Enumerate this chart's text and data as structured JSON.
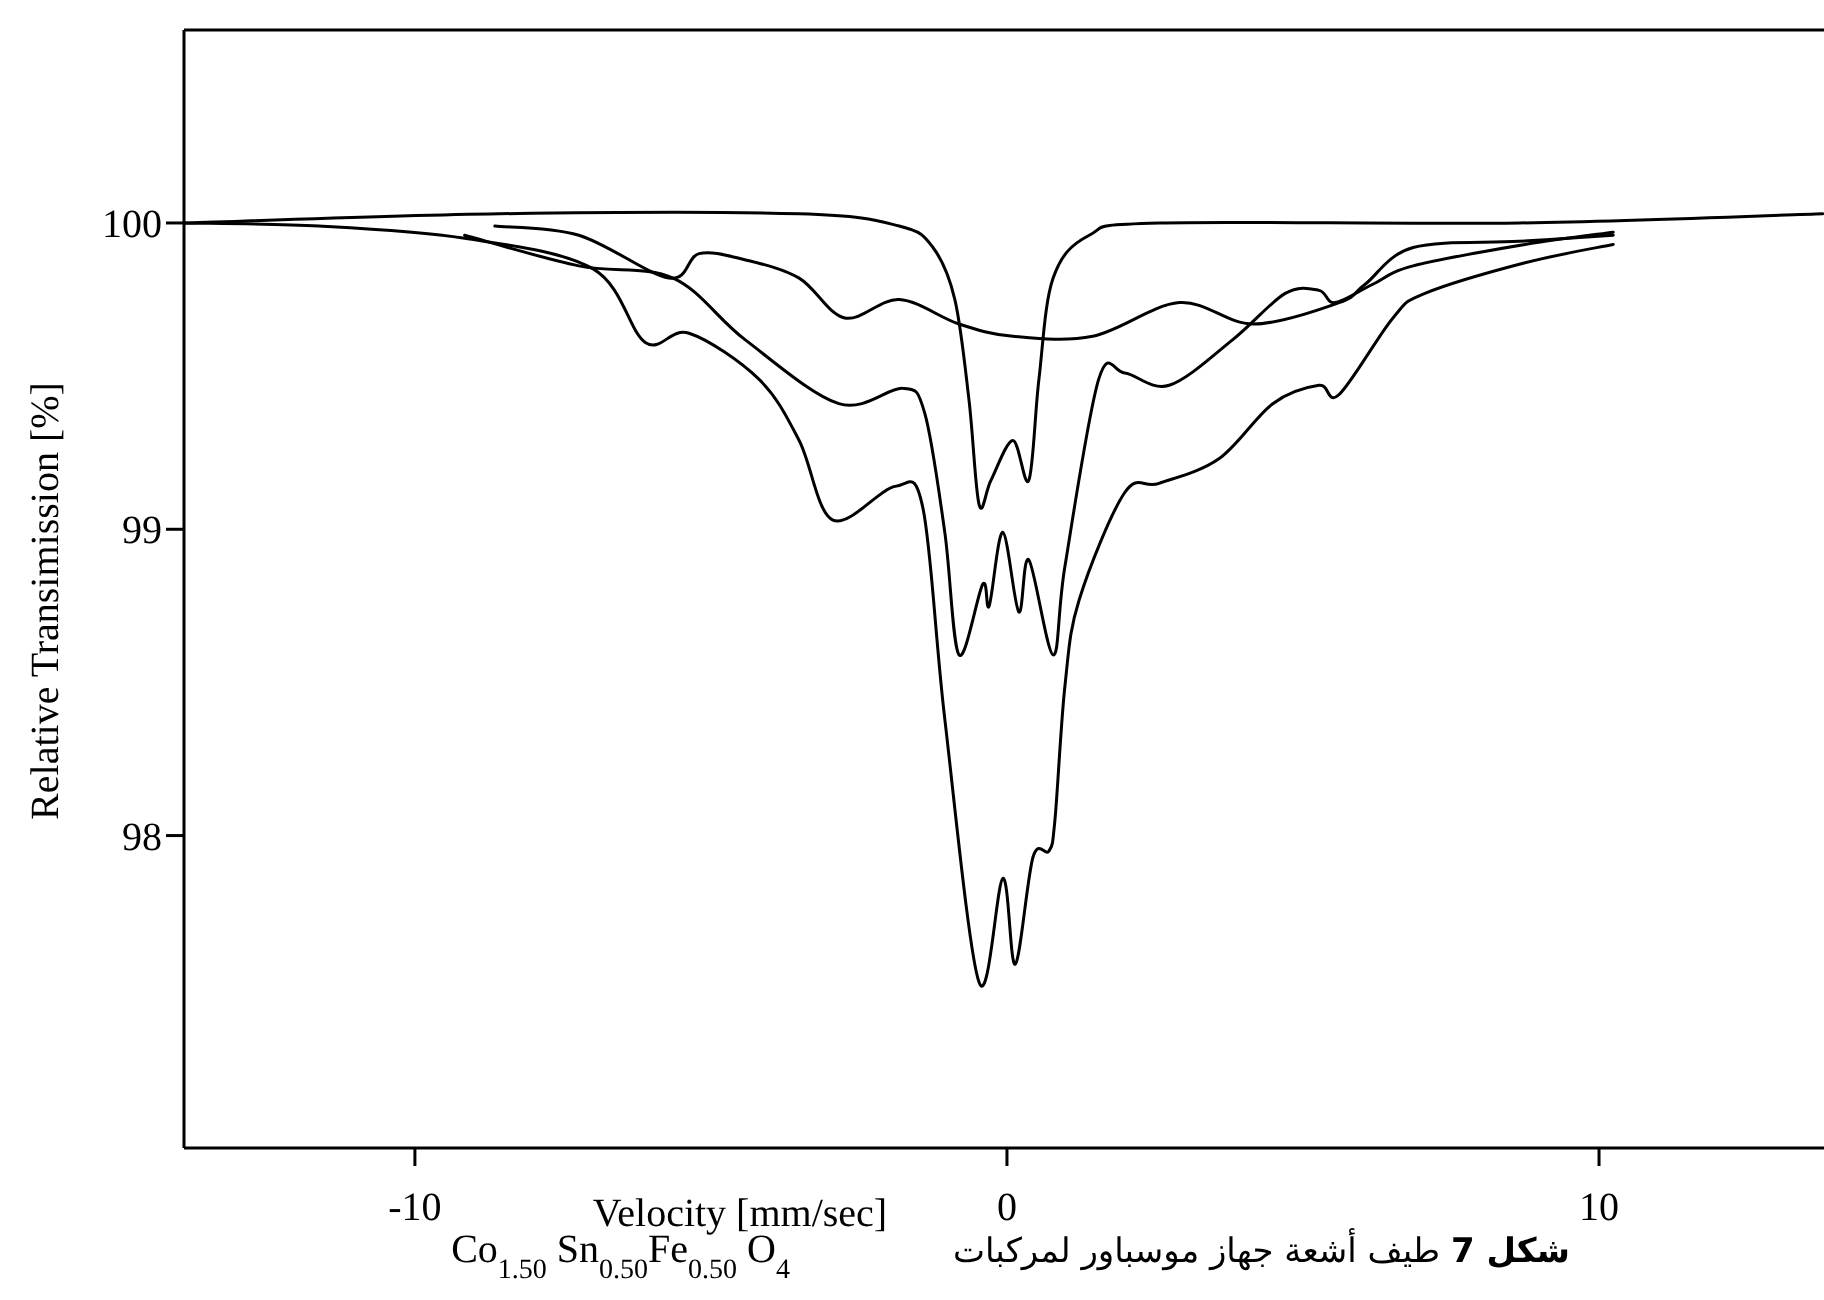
{
  "chart_data": {
    "type": "line",
    "title": "**شكل 7** طيف أشعة جهاز موسباور لمركبات",
    "annotations": [
      "Co$_{1.50}$ Sn$_{0.50}$Fe$_{0.50}$ O$_{4}$"
    ],
    "xlabel": "Velocity [mm/sec]",
    "ylabel": "Relative Transimission [%]",
    "xlim": [
      -13.9,
      13.8
    ],
    "ylim": [
      96.98,
      100.63
    ],
    "xticks": [
      -10,
      0,
      10
    ],
    "yticks": [
      98,
      99,
      100
    ],
    "marker": "none",
    "series": [
      {
        "color": "#000000",
        "x": [
          -13.9,
          -8.58,
          -3.51,
          -1.82,
          -1.25,
          -0.88,
          -0.64,
          -0.47,
          -0.27,
          0.1,
          0.37,
          0.54,
          0.78,
          1.39,
          2.57,
          8.65,
          13.78
        ],
        "values": [
          100.0,
          100.03,
          100.03,
          99.99,
          99.92,
          99.75,
          99.42,
          99.08,
          99.16,
          99.29,
          99.16,
          99.49,
          99.82,
          99.96,
          100.0,
          100.0,
          100.03
        ]
      },
      {
        "color": "#000000",
        "x": [
          -8.65,
          -7.23,
          -5.71,
          -5.2,
          -4.43,
          -3.51,
          -2.74,
          -1.82,
          -0.81,
          0.1,
          1.45,
          2.91,
          4.16,
          5.61,
          6.05,
          6.86,
          8.65,
          10.24
        ],
        "values": [
          99.99,
          99.96,
          99.82,
          99.9,
          99.88,
          99.82,
          99.69,
          99.75,
          99.67,
          99.63,
          99.63,
          99.74,
          99.67,
          99.74,
          99.8,
          99.92,
          99.94,
          99.96
        ]
      },
      {
        "color": "#000000",
        "x": [
          -9.16,
          -7.23,
          -5.64,
          -4.43,
          -2.84,
          -1.76,
          -1.39,
          -1.05,
          -0.81,
          -0.41,
          -0.3,
          -0.07,
          0.2,
          0.37,
          0.78,
          0.98,
          1.55,
          1.99,
          2.74,
          3.82,
          4.7,
          5.27,
          5.54,
          6.18,
          6.86,
          8.75,
          10.24
        ],
        "values": [
          99.96,
          99.86,
          99.82,
          99.62,
          99.41,
          99.46,
          99.38,
          98.99,
          98.59,
          98.82,
          98.75,
          98.99,
          98.73,
          98.9,
          98.59,
          98.88,
          99.49,
          99.51,
          99.47,
          99.62,
          99.77,
          99.78,
          99.74,
          99.8,
          99.86,
          99.93,
          99.97
        ]
      },
      {
        "color": "#000000",
        "x": [
          -13.9,
          -11.62,
          -9.16,
          -6.99,
          -6.11,
          -5.37,
          -4.19,
          -3.51,
          -2.94,
          -1.89,
          -1.42,
          -1.05,
          -0.47,
          -0.07,
          0.14,
          0.44,
          0.71,
          0.81,
          0.98,
          1.22,
          1.99,
          2.57,
          3.58,
          4.49,
          5.27,
          5.61,
          6.52,
          7.06,
          8.75,
          10.24
        ],
        "values": [
          100.0,
          99.99,
          99.95,
          99.85,
          99.61,
          99.64,
          99.49,
          99.29,
          99.03,
          99.14,
          99.07,
          98.38,
          97.52,
          97.86,
          97.58,
          97.93,
          97.95,
          98.05,
          98.49,
          98.77,
          99.12,
          99.15,
          99.23,
          99.41,
          99.47,
          99.44,
          99.69,
          99.77,
          99.87,
          99.93
        ]
      }
    ]
  }
}
